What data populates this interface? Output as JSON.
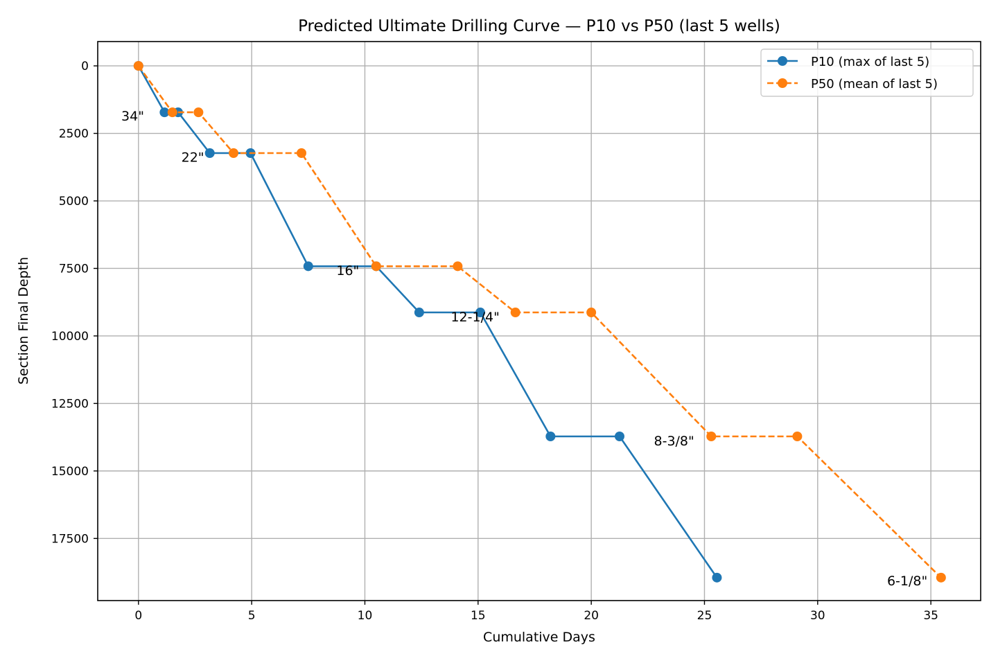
{
  "chart_data": {
    "type": "line",
    "title": "Predicted Ultimate Drilling Curve — P10 vs P50 (last 5 wells)",
    "xlabel": "Cumulative Days",
    "ylabel": "Section Final Depth",
    "xlim": [
      -1.8,
      37.2
    ],
    "ylim": [
      19800,
      -900
    ],
    "y_inverted": true,
    "grid": true,
    "legend_position": "upper right",
    "x_ticks": [
      0,
      5,
      10,
      15,
      20,
      25,
      30,
      35
    ],
    "y_ticks": [
      0,
      2500,
      5000,
      7500,
      10000,
      12500,
      15000,
      17500
    ],
    "series": [
      {
        "name": "P10 (max of last 5)",
        "color": "#1f77b4",
        "line_style": "solid",
        "marker": "circle",
        "x": [
          0,
          1.15,
          1.75,
          3.15,
          4.95,
          7.5,
          10.5,
          12.4,
          15.1,
          18.2,
          21.25,
          25.55
        ],
        "y": [
          0,
          1720,
          1720,
          3230,
          3230,
          7420,
          7420,
          9130,
          9130,
          13720,
          13720,
          18950
        ]
      },
      {
        "name": "P50 (mean of last 5)",
        "color": "#ff7f0e",
        "line_style": "dashed",
        "marker": "circle",
        "x": [
          0,
          1.5,
          2.65,
          4.2,
          7.2,
          10.5,
          14.1,
          16.65,
          20.0,
          25.3,
          29.1,
          35.45
        ],
        "y": [
          0,
          1720,
          1720,
          3230,
          3230,
          7420,
          7420,
          9130,
          9130,
          13720,
          13720,
          18950
        ]
      }
    ],
    "annotations": [
      {
        "text": "34\"",
        "x": 0.25,
        "y": 1850
      },
      {
        "text": "22\"",
        "x": 2.9,
        "y": 3370
      },
      {
        "text": "16\"",
        "x": 9.75,
        "y": 7560
      },
      {
        "text": "12-1/4\"",
        "x": 15.95,
        "y": 9280
      },
      {
        "text": "8-3/8\"",
        "x": 24.55,
        "y": 13880
      },
      {
        "text": "6-1/8\"",
        "x": 34.85,
        "y": 19060
      }
    ]
  }
}
